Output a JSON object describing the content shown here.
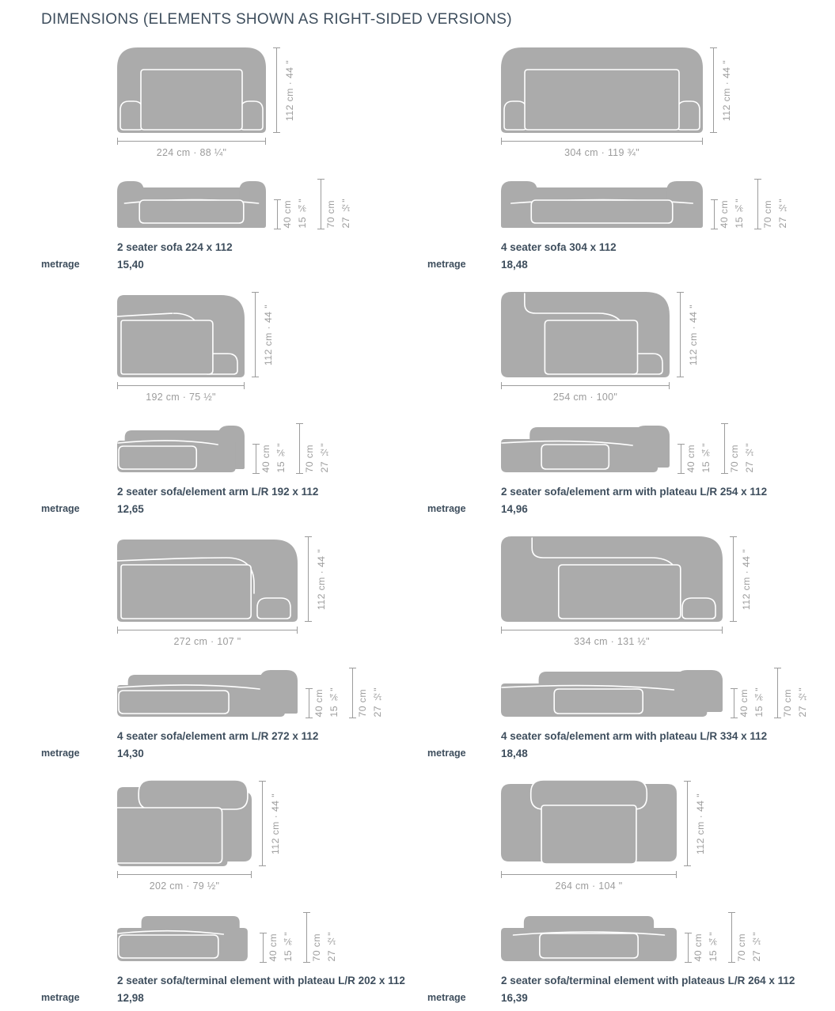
{
  "page": {
    "title": "DIMENSIONS (ELEMENTS SHOWN AS RIGHT-SIDED VERSIONS)"
  },
  "labels": {
    "metrage": "metrage"
  },
  "colors": {
    "sofa_gray": "#ababab",
    "dimension_gray": "#9c9c9c",
    "text_dark": "#3e4e5d",
    "background": "#ffffff"
  },
  "cells": [
    {
      "name": "2 seater sofa 224 x 112",
      "metrage": "15,40",
      "width_label": "224 cm · 88 ¼\"",
      "depth_label": "112 cm · 44 \"",
      "seat_height_cm": "40 cm",
      "seat_height_in": "15 ¾\"",
      "overall_height_cm": "70 cm",
      "overall_height_in": "27 ½\""
    },
    {
      "name": "4 seater sofa 304 x 112",
      "metrage": "18,48",
      "width_label": "304 cm · 119 ¾\"",
      "depth_label": "112 cm · 44 \"",
      "seat_height_cm": "40 cm",
      "seat_height_in": "15 ¾\"",
      "overall_height_cm": "70 cm",
      "overall_height_in": "27 ½\""
    },
    {
      "name": "2 seater sofa/element arm L/R 192 x 112",
      "metrage": "12,65",
      "width_label": "192 cm · 75 ½\"",
      "depth_label": "112 cm · 44 \"",
      "seat_height_cm": "40 cm",
      "seat_height_in": "15 ¾\"",
      "overall_height_cm": "70 cm",
      "overall_height_in": "27 ½\""
    },
    {
      "name": "2 seater sofa/element arm with plateau L/R 254 x 112",
      "metrage": "14,96",
      "width_label": "254 cm · 100\"",
      "depth_label": "112 cm · 44 \"",
      "seat_height_cm": "40 cm",
      "seat_height_in": "15 ¾\"",
      "overall_height_cm": "70 cm",
      "overall_height_in": "27 ½\""
    },
    {
      "name": "4 seater sofa/element arm L/R 272 x 112",
      "metrage": "14,30",
      "width_label": "272 cm · 107 \"",
      "depth_label": "112 cm · 44 \"",
      "seat_height_cm": "40 cm",
      "seat_height_in": "15 ¾\"",
      "overall_height_cm": "70 cm",
      "overall_height_in": "27 ½\""
    },
    {
      "name": "4 seater sofa/element arm with plateau L/R 334 x 112",
      "metrage": "18,48",
      "width_label": "334 cm · 131 ½\"",
      "depth_label": "112 cm · 44 \"",
      "seat_height_cm": "40 cm",
      "seat_height_in": "15 ¾\"",
      "overall_height_cm": "70 cm",
      "overall_height_in": "27 ½\""
    },
    {
      "name": "2 seater sofa/terminal element with plateau L/R 202 x 112",
      "metrage": "12,98",
      "width_label": "202 cm · 79 ½\"",
      "depth_label": "112 cm · 44 \"",
      "seat_height_cm": "40 cm",
      "seat_height_in": "15 ¾\"",
      "overall_height_cm": "70 cm",
      "overall_height_in": "27 ½\""
    },
    {
      "name": "2 seater sofa/terminal element with plateaus L/R 264 x 112",
      "metrage": "16,39",
      "width_label": "264 cm · 104 \"",
      "depth_label": "112 cm · 44 \"",
      "seat_height_cm": "40 cm",
      "seat_height_in": "15 ¾\"",
      "overall_height_cm": "70 cm",
      "overall_height_in": "27 ½\""
    }
  ]
}
